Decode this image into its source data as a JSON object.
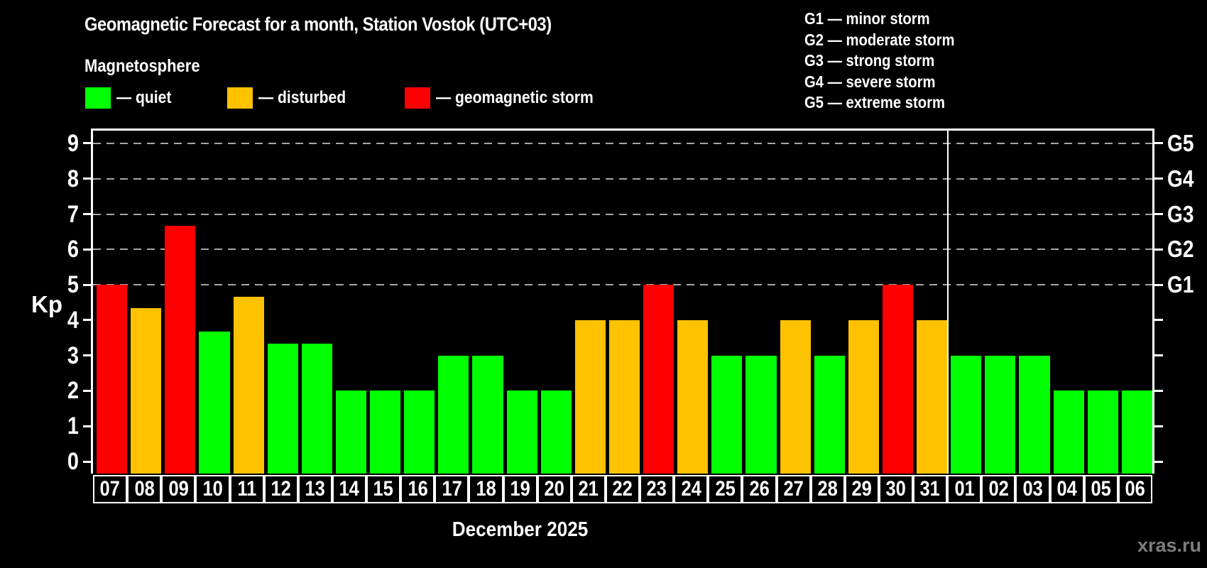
{
  "title": "Geomagnetic Forecast for a month, Station Vostok (UTC+03)",
  "subtitle": "Magnetosphere",
  "legend": {
    "items": [
      {
        "name": "quiet",
        "label": "— quiet"
      },
      {
        "name": "disturbed",
        "label": "— disturbed"
      },
      {
        "name": "storm",
        "label": "— geomagnetic storm"
      }
    ]
  },
  "g_scale_legend": [
    "G1 — minor storm",
    "G2 — moderate storm",
    "G3 — strong storm",
    "G4 — severe storm",
    "G5 — extreme storm"
  ],
  "watermark": "xras.ru",
  "colors": {
    "quiet": "#00ff00",
    "disturbed": "#ffc200",
    "storm": "#ff0000",
    "grid": "#a6a6a6",
    "axis": "#ffffff",
    "background": "#000000",
    "watermark": "#7d7d7d"
  },
  "chart_data": {
    "type": "bar",
    "title": "Geomagnetic Forecast for a month, Station Vostok (UTC+03)",
    "xlabel": "December 2025",
    "ylabel": "Kp",
    "ylim": [
      0,
      9.4
    ],
    "grid": "dashed horizontal at Kp 5-9",
    "yticks": [
      0,
      1,
      2,
      3,
      4,
      5,
      6,
      7,
      8,
      9
    ],
    "categories": [
      "07",
      "08",
      "09",
      "10",
      "11",
      "12",
      "13",
      "14",
      "15",
      "16",
      "17",
      "18",
      "19",
      "20",
      "21",
      "22",
      "23",
      "24",
      "25",
      "26",
      "27",
      "28",
      "29",
      "30",
      "31",
      "01",
      "02",
      "03",
      "04",
      "05",
      "06"
    ],
    "values": [
      5,
      4.33,
      6.67,
      3.67,
      4.67,
      3.33,
      3.33,
      2,
      2,
      2,
      3,
      3,
      2,
      2,
      4,
      4,
      5,
      4,
      3,
      3,
      4,
      3,
      4,
      5,
      4,
      3,
      3,
      3,
      2,
      2,
      2
    ],
    "statuses": [
      "storm",
      "disturbed",
      "storm",
      "quiet",
      "disturbed",
      "quiet",
      "quiet",
      "quiet",
      "quiet",
      "quiet",
      "quiet",
      "quiet",
      "quiet",
      "quiet",
      "disturbed",
      "disturbed",
      "storm",
      "disturbed",
      "quiet",
      "quiet",
      "disturbed",
      "quiet",
      "disturbed",
      "storm",
      "disturbed",
      "quiet",
      "quiet",
      "quiet",
      "quiet",
      "quiet",
      "quiet"
    ],
    "right_axis": {
      "labels": [
        "G1",
        "G2",
        "G3",
        "G4",
        "G5"
      ],
      "kp_levels": [
        5,
        6,
        7,
        8,
        9
      ]
    },
    "divider_after_category": "31"
  }
}
